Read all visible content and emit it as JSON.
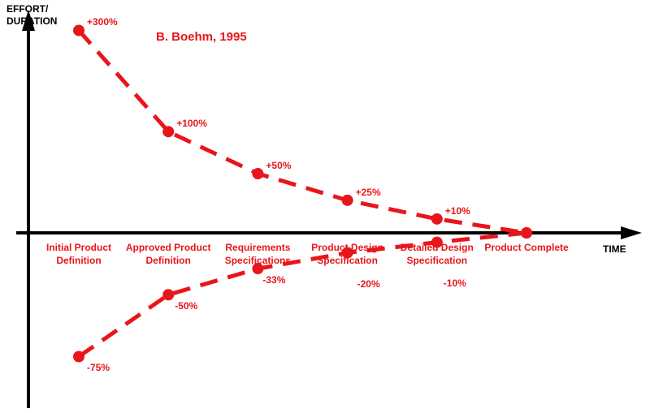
{
  "chart_data": {
    "type": "line",
    "title": "B. Boehm, 1995",
    "y_label": "EFFORT/ DURATION",
    "x_label": "TIME",
    "categories": [
      "Initial Product Definition",
      "Approved Product Definition",
      "Requirements Specifications",
      "Product Design Specification",
      "Detailed Design Specification",
      "Product Complete"
    ],
    "series": [
      {
        "color": "#e8161b",
        "values": [
          300,
          100,
          50,
          25,
          10,
          0
        ],
        "value_labels": [
          "+300%",
          "+100%",
          "+50%",
          "+25%",
          "+10%",
          null
        ]
      },
      {
        "color": "#e8161b",
        "values": [
          -75,
          -50,
          -33,
          -20,
          -10,
          0
        ],
        "value_labels": [
          "-75%",
          "-50%",
          "-33%",
          "-20%",
          "-10%",
          null
        ]
      }
    ]
  }
}
